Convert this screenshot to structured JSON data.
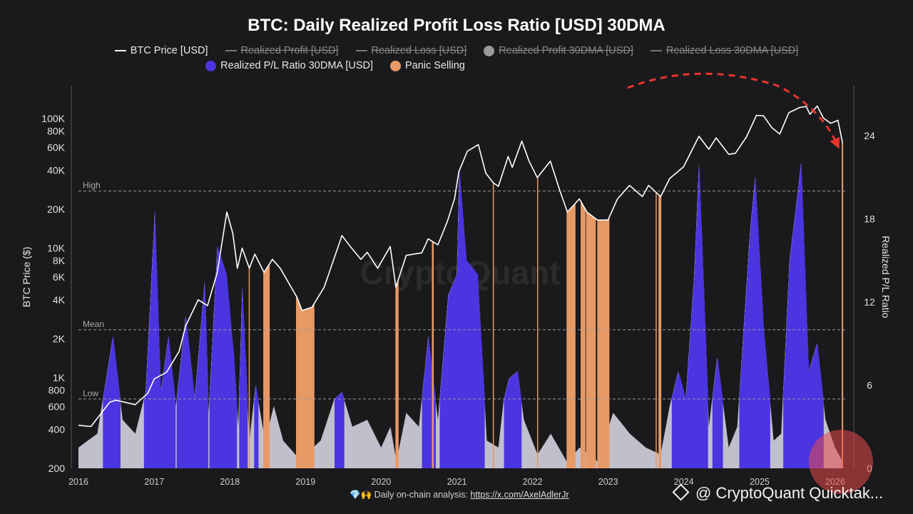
{
  "title": "BTC: Daily Realized Profit Loss Ratio [USD] 30DMA",
  "legend": {
    "row1": [
      {
        "label": "BTC Price [USD]",
        "kind": "line",
        "enabled": true
      },
      {
        "label": "Realized Profit [USD]",
        "kind": "line",
        "enabled": false
      },
      {
        "label": "Realized Loss [USD]",
        "kind": "line",
        "enabled": false
      },
      {
        "label": "Realized Profit 30DMA [USD]",
        "kind": "dot",
        "enabled": false
      },
      {
        "label": "Realized Loss 30DMA [USD]",
        "kind": "line",
        "enabled": false
      }
    ],
    "row2": [
      {
        "label": "Realized P/L Ratio 30DMA [USD]",
        "kind": "dot",
        "color": "#4a35e0",
        "enabled": true
      },
      {
        "label": "Panic Selling",
        "kind": "dot",
        "color": "#e89a66",
        "enabled": true
      }
    ]
  },
  "footer": {
    "prefix": "💎🙌 Daily on-chain analysis: ",
    "link": "https://x.com/AxelAdlerJr"
  },
  "watermark": "@ CryptoQuant Quicktak...",
  "center_watermark": "CryptoQuant",
  "colors": {
    "background": "#1a1a1c",
    "price": "#ffffff",
    "ratio_fill": "#c9c9d6",
    "high_ratio": "#4a35e0",
    "panic": "#e89a66",
    "arrow": "#e8332c",
    "highlight": "#e84a4a"
  },
  "chart_data": {
    "type": "area",
    "xlabel": "",
    "x_ticks": [
      "2016",
      "2017",
      "2018",
      "2019",
      "2020",
      "2021",
      "2022",
      "2023",
      "2024",
      "2025",
      "2026"
    ],
    "y_left": {
      "label": "BTC Price ($)",
      "scale": "log",
      "ticks": [
        "200",
        "400",
        "600",
        "800",
        "1K",
        "2K",
        "4K",
        "6K",
        "8K",
        "10K",
        "20K",
        "40K",
        "60K",
        "80K",
        "100K"
      ],
      "tick_values": [
        200,
        400,
        600,
        800,
        1000,
        2000,
        4000,
        6000,
        8000,
        10000,
        20000,
        40000,
        60000,
        80000,
        100000
      ],
      "range": [
        200,
        200000
      ]
    },
    "y_right": {
      "label": "Realized P/L Ratio",
      "ticks": [
        "0",
        "6",
        "12",
        "18",
        "24"
      ],
      "tick_values": [
        0,
        6,
        12,
        18,
        24
      ],
      "range": [
        0,
        27.5
      ]
    },
    "reference_lines": [
      {
        "label": "High",
        "value": 20
      },
      {
        "label": "Mean",
        "value": 10
      },
      {
        "label": "Low",
        "value": 5
      }
    ],
    "series": [
      {
        "name": "BTC Price [USD]",
        "axis": "left",
        "points": [
          [
            "2016-01-01",
            430
          ],
          [
            "2016-03-01",
            420
          ],
          [
            "2016-06-01",
            650
          ],
          [
            "2016-07-01",
            670
          ],
          [
            "2016-10-01",
            620
          ],
          [
            "2016-12-01",
            760
          ],
          [
            "2017-01-01",
            980
          ],
          [
            "2017-03-01",
            1100
          ],
          [
            "2017-05-01",
            1600
          ],
          [
            "2017-06-01",
            2500
          ],
          [
            "2017-08-01",
            4000
          ],
          [
            "2017-09-15",
            3600
          ],
          [
            "2017-11-01",
            6500
          ],
          [
            "2017-12-17",
            19000
          ],
          [
            "2018-01-15",
            13000
          ],
          [
            "2018-02-06",
            7000
          ],
          [
            "2018-03-01",
            10000
          ],
          [
            "2018-04-05",
            7000
          ],
          [
            "2018-05-01",
            9000
          ],
          [
            "2018-06-15",
            6500
          ],
          [
            "2018-07-25",
            8200
          ],
          [
            "2018-09-01",
            7000
          ],
          [
            "2018-11-20",
            4200
          ],
          [
            "2018-12-15",
            3300
          ],
          [
            "2019-02-01",
            3500
          ],
          [
            "2019-04-01",
            5000
          ],
          [
            "2019-06-26",
            12500
          ],
          [
            "2019-08-01",
            10500
          ],
          [
            "2019-09-25",
            8200
          ],
          [
            "2019-10-26",
            9300
          ],
          [
            "2019-12-15",
            7000
          ],
          [
            "2020-02-14",
            10300
          ],
          [
            "2020-03-12",
            5000
          ],
          [
            "2020-05-01",
            8800
          ],
          [
            "2020-07-15",
            9200
          ],
          [
            "2020-08-15",
            11800
          ],
          [
            "2020-10-01",
            10600
          ],
          [
            "2020-11-15",
            16000
          ],
          [
            "2020-12-20",
            24000
          ],
          [
            "2021-01-10",
            39000
          ],
          [
            "2021-02-20",
            56000
          ],
          [
            "2021-04-14",
            63000
          ],
          [
            "2021-05-20",
            38000
          ],
          [
            "2021-06-25",
            32000
          ],
          [
            "2021-07-20",
            30000
          ],
          [
            "2021-09-05",
            51000
          ],
          [
            "2021-09-25",
            42000
          ],
          [
            "2021-11-10",
            67000
          ],
          [
            "2021-12-15",
            47000
          ],
          [
            "2022-01-24",
            35000
          ],
          [
            "2022-03-28",
            47000
          ],
          [
            "2022-05-12",
            28000
          ],
          [
            "2022-06-18",
            19000
          ],
          [
            "2022-08-15",
            24000
          ],
          [
            "2022-09-20",
            19000
          ],
          [
            "2022-11-10",
            16500
          ],
          [
            "2022-12-31",
            16500
          ],
          [
            "2023-02-15",
            24000
          ],
          [
            "2023-04-14",
            30500
          ],
          [
            "2023-06-15",
            25000
          ],
          [
            "2023-07-15",
            30500
          ],
          [
            "2023-09-11",
            25000
          ],
          [
            "2023-10-25",
            34500
          ],
          [
            "2023-12-31",
            42500
          ],
          [
            "2024-03-14",
            73000
          ],
          [
            "2024-05-01",
            58000
          ],
          [
            "2024-06-05",
            71000
          ],
          [
            "2024-08-05",
            53000
          ],
          [
            "2024-09-06",
            54000
          ],
          [
            "2024-10-29",
            72000
          ],
          [
            "2024-12-17",
            106000
          ],
          [
            "2025-01-20",
            105000
          ],
          [
            "2025-03-01",
            85000
          ],
          [
            "2025-04-08",
            76000
          ],
          [
            "2025-05-22",
            111000
          ],
          [
            "2025-07-14",
            122000
          ],
          [
            "2025-08-14",
            124000
          ],
          [
            "2025-09-01",
            108000
          ],
          [
            "2025-10-06",
            125000
          ],
          [
            "2025-11-05",
            101000
          ],
          [
            "2025-12-10",
            92000
          ],
          [
            "2026-01-14",
            97000
          ],
          [
            "2026-02-05",
            65000
          ]
        ]
      },
      {
        "name": "Realized P/L Ratio 30DMA [USD]",
        "axis": "right",
        "color_rule": "blue above 5, orange during panic selling, grey otherwise",
        "points": [
          [
            "2016-01-01",
            1.5
          ],
          [
            "2016-04-01",
            2.5
          ],
          [
            "2016-06-15",
            9.5
          ],
          [
            "2016-08-01",
            3.5
          ],
          [
            "2016-10-01",
            2.5
          ],
          [
            "2016-11-20",
            5.5
          ],
          [
            "2017-01-03",
            18.5
          ],
          [
            "2017-02-01",
            5.5
          ],
          [
            "2017-03-10",
            9.5
          ],
          [
            "2017-04-15",
            4.5
          ],
          [
            "2017-06-01",
            11
          ],
          [
            "2017-07-15",
            5
          ],
          [
            "2017-09-01",
            13.5
          ],
          [
            "2017-09-20",
            4
          ],
          [
            "2017-11-01",
            16
          ],
          [
            "2017-12-15",
            14
          ],
          [
            "2018-01-20",
            8
          ],
          [
            "2018-02-10",
            3
          ],
          [
            "2018-03-01",
            13
          ],
          [
            "2018-04-05",
            2
          ],
          [
            "2018-05-05",
            6
          ],
          [
            "2018-06-20",
            2
          ],
          [
            "2018-08-01",
            4.5
          ],
          [
            "2018-09-15",
            2
          ],
          [
            "2018-11-25",
            0.8
          ],
          [
            "2019-01-15",
            1.2
          ],
          [
            "2019-03-15",
            2
          ],
          [
            "2019-05-20",
            5
          ],
          [
            "2019-06-26",
            5.5
          ],
          [
            "2019-08-15",
            3
          ],
          [
            "2019-10-26",
            3.5
          ],
          [
            "2020-01-01",
            1.5
          ],
          [
            "2020-02-15",
            3
          ],
          [
            "2020-03-15",
            0.5
          ],
          [
            "2020-05-01",
            4
          ],
          [
            "2020-07-01",
            3
          ],
          [
            "2020-08-15",
            9.5
          ],
          [
            "2020-10-01",
            3.5
          ],
          [
            "2020-11-20",
            12.5
          ],
          [
            "2020-12-31",
            14
          ],
          [
            "2021-01-12",
            21.5
          ],
          [
            "2021-02-15",
            15
          ],
          [
            "2021-04-10",
            14
          ],
          [
            "2021-05-25",
            2
          ],
          [
            "2021-07-20",
            1.5
          ],
          [
            "2021-08-15",
            5
          ],
          [
            "2021-09-10",
            6.5
          ],
          [
            "2021-10-20",
            7
          ],
          [
            "2021-11-20",
            3.5
          ],
          [
            "2022-01-25",
            1
          ],
          [
            "2022-03-30",
            2.5
          ],
          [
            "2022-06-18",
            0.4
          ],
          [
            "2022-08-15",
            1.5
          ],
          [
            "2022-11-10",
            0.5
          ],
          [
            "2023-01-25",
            4
          ],
          [
            "2023-03-20",
            3
          ],
          [
            "2023-04-15",
            2.5
          ],
          [
            "2023-07-01",
            1.5
          ],
          [
            "2023-09-11",
            1
          ],
          [
            "2023-10-25",
            4.5
          ],
          [
            "2023-12-05",
            7
          ],
          [
            "2024-01-10",
            5
          ],
          [
            "2024-02-20",
            14
          ],
          [
            "2024-03-14",
            22
          ],
          [
            "2024-05-01",
            3
          ],
          [
            "2024-06-10",
            8
          ],
          [
            "2024-08-05",
            1.5
          ],
          [
            "2024-09-15",
            3
          ],
          [
            "2024-11-15",
            17
          ],
          [
            "2024-12-10",
            21
          ],
          [
            "2025-01-20",
            10
          ],
          [
            "2025-03-10",
            2
          ],
          [
            "2025-04-15",
            2.5
          ],
          [
            "2025-05-25",
            15
          ],
          [
            "2025-07-20",
            22
          ],
          [
            "2025-08-25",
            7
          ],
          [
            "2025-10-05",
            9
          ],
          [
            "2025-11-15",
            3.5
          ],
          [
            "2025-12-31",
            1.5
          ],
          [
            "2026-02-05",
            0.5
          ]
        ]
      }
    ],
    "panic_selling_periods": [
      [
        "2018-04-01",
        "2018-04-05"
      ],
      [
        "2018-06-10",
        "2018-07-10"
      ],
      [
        "2018-11-15",
        "2019-02-10"
      ],
      [
        "2020-03-10",
        "2020-03-22"
      ],
      [
        "2020-09-01",
        "2020-09-08"
      ],
      [
        "2021-06-22",
        "2021-06-26"
      ],
      [
        "2022-01-22",
        "2022-01-26"
      ],
      [
        "2022-06-13",
        "2022-07-25"
      ],
      [
        "2022-08-20",
        "2022-09-10"
      ],
      [
        "2022-09-15",
        "2022-10-31"
      ],
      [
        "2022-11-09",
        "2023-01-05"
      ],
      [
        "2023-08-17",
        "2023-08-20"
      ],
      [
        "2023-09-01",
        "2023-09-12"
      ],
      [
        "2026-02-01",
        "2026-02-05"
      ]
    ]
  }
}
